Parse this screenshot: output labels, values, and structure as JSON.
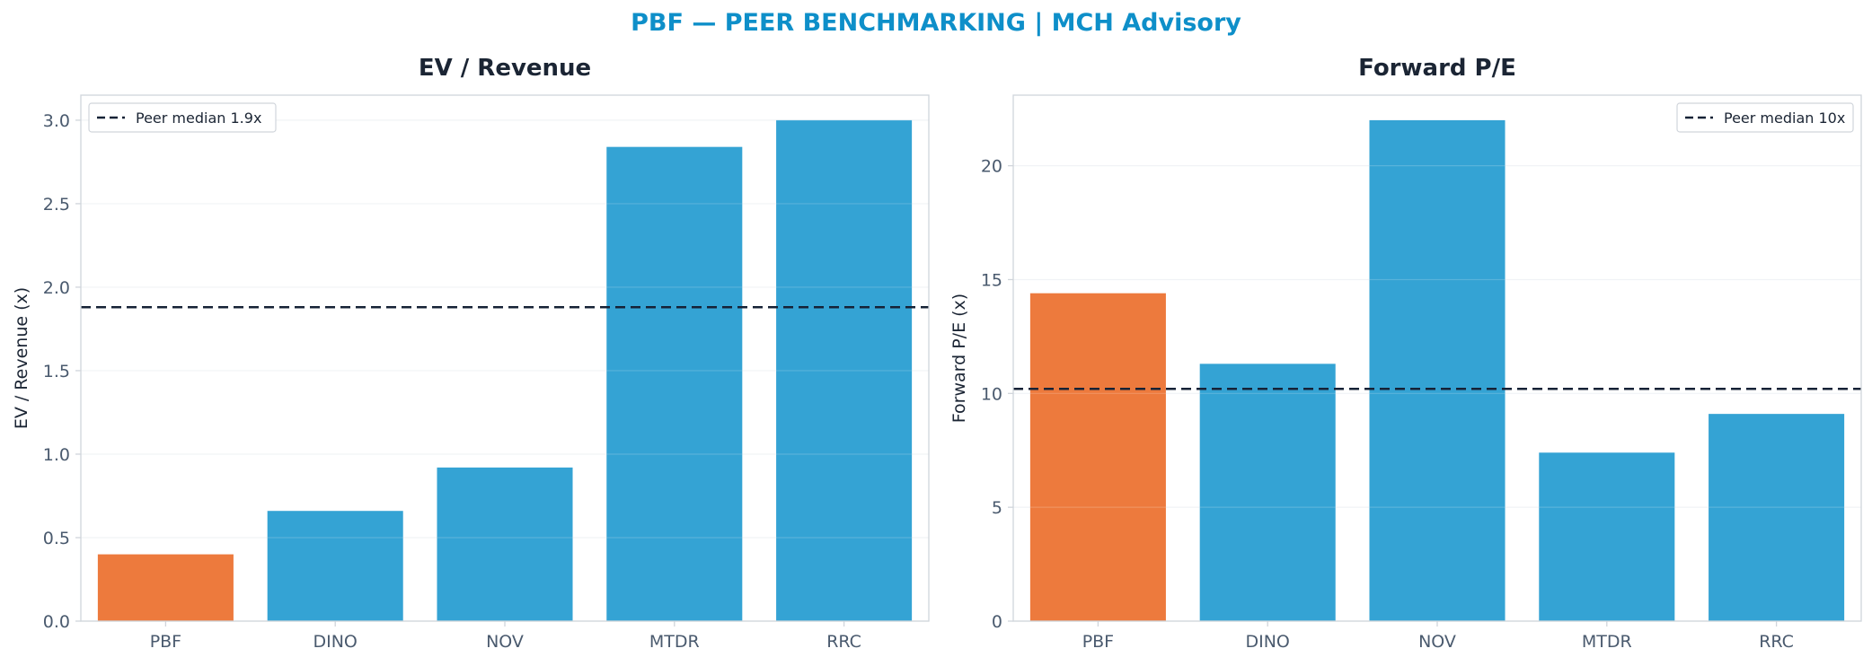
{
  "figure": {
    "suptitle": "PBF — PEER BENCHMARKING | MCH Advisory"
  },
  "colors": {
    "title_accent": "#0e8fc9",
    "highlight_bar": "#ed7a3d",
    "peer_bar": "#34a3d4",
    "median_line": "#162236",
    "axis_text": "#4a5a6e",
    "title_text": "#1b2534",
    "grid": "#eef1f4",
    "spine": "#d0d5db"
  },
  "chart_data": [
    {
      "type": "bar",
      "title": "EV / Revenue",
      "xlabel": "",
      "ylabel": "EV / Revenue (x)",
      "categories": [
        "PBF",
        "DINO",
        "NOV",
        "MTDR",
        "RRC"
      ],
      "values": [
        0.4,
        0.66,
        0.92,
        2.84,
        3.0
      ],
      "highlight_index": 0,
      "ylim": [
        0,
        3.15
      ],
      "yticks": [
        0.0,
        0.5,
        1.0,
        1.5,
        2.0,
        2.5,
        3.0
      ],
      "ytick_labels": [
        "0.0",
        "0.5",
        "1.0",
        "1.5",
        "2.0",
        "2.5",
        "3.0"
      ],
      "median": 1.88,
      "legend": {
        "label": "Peer median 1.9x",
        "placement": "upper-left"
      },
      "grid": true
    },
    {
      "type": "bar",
      "title": "Forward P/E",
      "xlabel": "",
      "ylabel": "Forward P/E (x)",
      "categories": [
        "PBF",
        "DINO",
        "NOV",
        "MTDR",
        "RRC"
      ],
      "values": [
        14.4,
        11.3,
        22.0,
        7.4,
        9.1
      ],
      "highlight_index": 0,
      "ylim": [
        0,
        23.1
      ],
      "yticks": [
        0,
        5,
        10,
        15,
        20
      ],
      "ytick_labels": [
        "0",
        "5",
        "10",
        "15",
        "20"
      ],
      "median": 10.2,
      "legend": {
        "label": "Peer median 10x",
        "placement": "upper-right"
      },
      "grid": true
    }
  ]
}
